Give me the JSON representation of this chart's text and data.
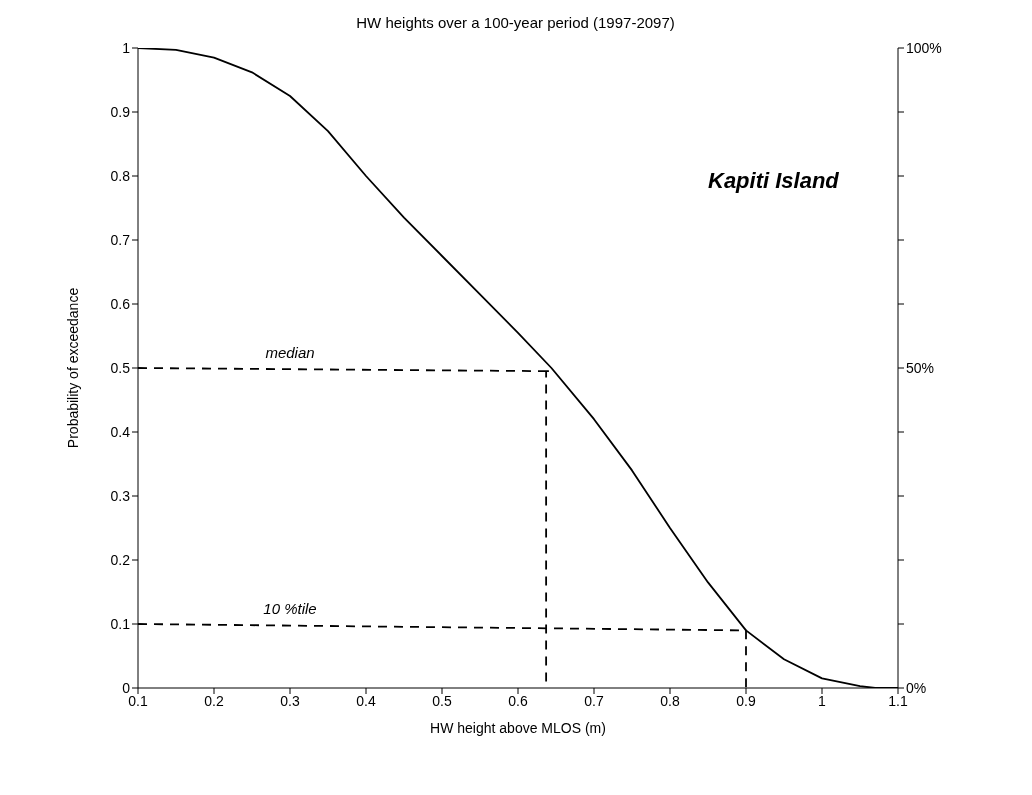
{
  "chart_data": {
    "type": "line",
    "title": "HW heights over a 100-year period (1997-2097)",
    "xlabel": "HW height above MLOS (m)",
    "ylabel": "Probability of exceedance",
    "xlim": [
      0.1,
      1.1
    ],
    "xticks": [
      0.1,
      0.2,
      0.3,
      0.4,
      0.5,
      0.6,
      0.7,
      0.8,
      0.9,
      1,
      1.1
    ],
    "ylim": [
      0,
      1
    ],
    "yticks": [
      0,
      0.1,
      0.2,
      0.3,
      0.4,
      0.5,
      0.6,
      0.7,
      0.8,
      0.9,
      1
    ],
    "y2lim": [
      0,
      100
    ],
    "y2ticks": [
      {
        "value": 0,
        "label": "0%"
      },
      {
        "value": 10,
        "label": null
      },
      {
        "value": 20,
        "label": null
      },
      {
        "value": 30,
        "label": null
      },
      {
        "value": 40,
        "label": null
      },
      {
        "value": 50,
        "label": "50%"
      },
      {
        "value": 60,
        "label": null
      },
      {
        "value": 70,
        "label": null
      },
      {
        "value": 80,
        "label": null
      },
      {
        "value": 90,
        "label": null
      },
      {
        "value": 100,
        "label": "100%"
      }
    ],
    "marker": "none",
    "series": [
      {
        "color": "#000000",
        "line_style": "solid",
        "x": [
          0.1,
          0.15,
          0.2,
          0.25,
          0.3,
          0.35,
          0.4,
          0.45,
          0.5,
          0.55,
          0.6,
          0.644,
          0.7,
          0.75,
          0.8,
          0.85,
          0.9,
          0.95,
          1,
          1.05,
          1.07,
          1.1
        ],
        "values": [
          1,
          0.997,
          0.985,
          0.962,
          0.925,
          0.87,
          0.8,
          0.735,
          0.675,
          0.615,
          0.555,
          0.5,
          0.42,
          0.34,
          0.25,
          0.165,
          0.09,
          0.045,
          0.015,
          0.003,
          0,
          0
        ]
      },
      {
        "color": "#000000",
        "line_style": "dashed",
        "x": [
          0.1,
          0.644,
          0.637,
          0.637
        ],
        "values": [
          0.5,
          0.495,
          0.495,
          0
        ]
      },
      {
        "color": "#000000",
        "line_style": "dashed",
        "x": [
          0.1,
          0.9,
          0.9
        ],
        "values": [
          0.1,
          0.09,
          0
        ]
      }
    ],
    "annotations": [
      {
        "text": "median",
        "x": 0.3,
        "y": 0.5
      },
      {
        "text": "10 %tile",
        "x": 0.3,
        "y": 0.1
      },
      "Kapiti Island"
    ]
  }
}
